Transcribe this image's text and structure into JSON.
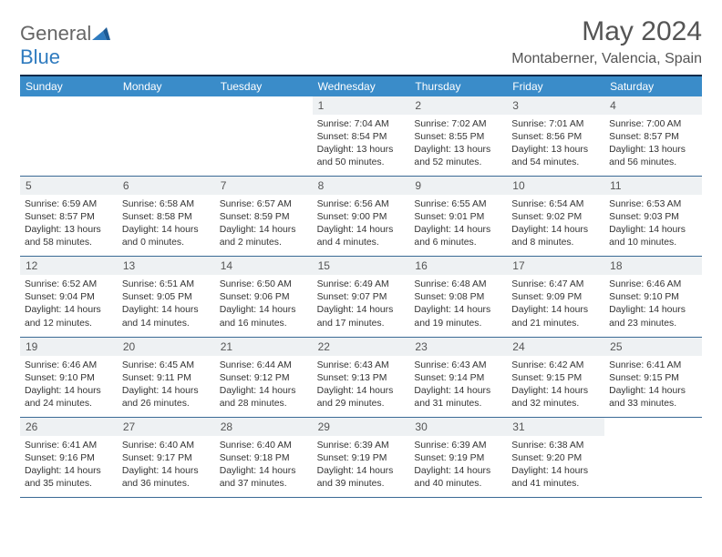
{
  "logo": {
    "word1": "General",
    "word2": "Blue"
  },
  "title": "May 2024",
  "location": "Montaberner, Valencia, Spain",
  "colors": {
    "header_bg": "#3a8cc9",
    "header_text": "#ffffff",
    "top_rule": "#0a2a4a",
    "daynum_bg": "#eef1f3",
    "week_border": "#3a6a95",
    "text": "#333333",
    "logo_gray": "#666666",
    "logo_blue": "#2f7bbf",
    "logo_mark": "#2f7bbf"
  },
  "day_names": [
    "Sunday",
    "Monday",
    "Tuesday",
    "Wednesday",
    "Thursday",
    "Friday",
    "Saturday"
  ],
  "labels": {
    "sunrise": "Sunrise:",
    "sunset": "Sunset:",
    "daylight": "Daylight:"
  },
  "weeks": [
    [
      null,
      null,
      null,
      {
        "n": "1",
        "sr": "7:04 AM",
        "ss": "8:54 PM",
        "dl": "13 hours and 50 minutes."
      },
      {
        "n": "2",
        "sr": "7:02 AM",
        "ss": "8:55 PM",
        "dl": "13 hours and 52 minutes."
      },
      {
        "n": "3",
        "sr": "7:01 AM",
        "ss": "8:56 PM",
        "dl": "13 hours and 54 minutes."
      },
      {
        "n": "4",
        "sr": "7:00 AM",
        "ss": "8:57 PM",
        "dl": "13 hours and 56 minutes."
      }
    ],
    [
      {
        "n": "5",
        "sr": "6:59 AM",
        "ss": "8:57 PM",
        "dl": "13 hours and 58 minutes."
      },
      {
        "n": "6",
        "sr": "6:58 AM",
        "ss": "8:58 PM",
        "dl": "14 hours and 0 minutes."
      },
      {
        "n": "7",
        "sr": "6:57 AM",
        "ss": "8:59 PM",
        "dl": "14 hours and 2 minutes."
      },
      {
        "n": "8",
        "sr": "6:56 AM",
        "ss": "9:00 PM",
        "dl": "14 hours and 4 minutes."
      },
      {
        "n": "9",
        "sr": "6:55 AM",
        "ss": "9:01 PM",
        "dl": "14 hours and 6 minutes."
      },
      {
        "n": "10",
        "sr": "6:54 AM",
        "ss": "9:02 PM",
        "dl": "14 hours and 8 minutes."
      },
      {
        "n": "11",
        "sr": "6:53 AM",
        "ss": "9:03 PM",
        "dl": "14 hours and 10 minutes."
      }
    ],
    [
      {
        "n": "12",
        "sr": "6:52 AM",
        "ss": "9:04 PM",
        "dl": "14 hours and 12 minutes."
      },
      {
        "n": "13",
        "sr": "6:51 AM",
        "ss": "9:05 PM",
        "dl": "14 hours and 14 minutes."
      },
      {
        "n": "14",
        "sr": "6:50 AM",
        "ss": "9:06 PM",
        "dl": "14 hours and 16 minutes."
      },
      {
        "n": "15",
        "sr": "6:49 AM",
        "ss": "9:07 PM",
        "dl": "14 hours and 17 minutes."
      },
      {
        "n": "16",
        "sr": "6:48 AM",
        "ss": "9:08 PM",
        "dl": "14 hours and 19 minutes."
      },
      {
        "n": "17",
        "sr": "6:47 AM",
        "ss": "9:09 PM",
        "dl": "14 hours and 21 minutes."
      },
      {
        "n": "18",
        "sr": "6:46 AM",
        "ss": "9:10 PM",
        "dl": "14 hours and 23 minutes."
      }
    ],
    [
      {
        "n": "19",
        "sr": "6:46 AM",
        "ss": "9:10 PM",
        "dl": "14 hours and 24 minutes."
      },
      {
        "n": "20",
        "sr": "6:45 AM",
        "ss": "9:11 PM",
        "dl": "14 hours and 26 minutes."
      },
      {
        "n": "21",
        "sr": "6:44 AM",
        "ss": "9:12 PM",
        "dl": "14 hours and 28 minutes."
      },
      {
        "n": "22",
        "sr": "6:43 AM",
        "ss": "9:13 PM",
        "dl": "14 hours and 29 minutes."
      },
      {
        "n": "23",
        "sr": "6:43 AM",
        "ss": "9:14 PM",
        "dl": "14 hours and 31 minutes."
      },
      {
        "n": "24",
        "sr": "6:42 AM",
        "ss": "9:15 PM",
        "dl": "14 hours and 32 minutes."
      },
      {
        "n": "25",
        "sr": "6:41 AM",
        "ss": "9:15 PM",
        "dl": "14 hours and 33 minutes."
      }
    ],
    [
      {
        "n": "26",
        "sr": "6:41 AM",
        "ss": "9:16 PM",
        "dl": "14 hours and 35 minutes."
      },
      {
        "n": "27",
        "sr": "6:40 AM",
        "ss": "9:17 PM",
        "dl": "14 hours and 36 minutes."
      },
      {
        "n": "28",
        "sr": "6:40 AM",
        "ss": "9:18 PM",
        "dl": "14 hours and 37 minutes."
      },
      {
        "n": "29",
        "sr": "6:39 AM",
        "ss": "9:19 PM",
        "dl": "14 hours and 39 minutes."
      },
      {
        "n": "30",
        "sr": "6:39 AM",
        "ss": "9:19 PM",
        "dl": "14 hours and 40 minutes."
      },
      {
        "n": "31",
        "sr": "6:38 AM",
        "ss": "9:20 PM",
        "dl": "14 hours and 41 minutes."
      },
      null
    ]
  ]
}
